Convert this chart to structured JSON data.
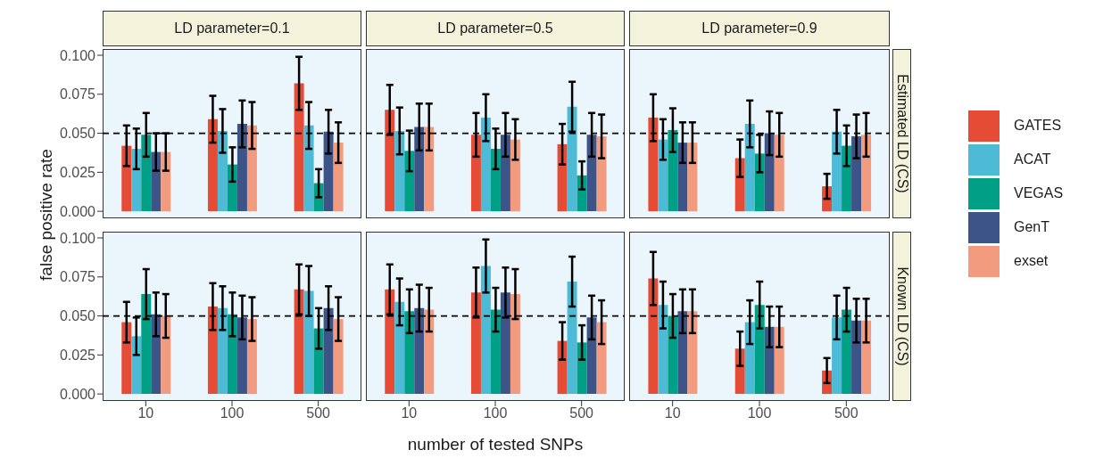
{
  "chart_data": [
    {
      "type": "bar",
      "title": "LD parameter=0.1",
      "ylabel": "false positive rate",
      "categories": [
        "10",
        "100",
        "500"
      ],
      "tick_labels": "y",
      "ylim": [
        -0.0045,
        0.104
      ],
      "yticks": [
        {
          "value": 0,
          "label": "0.000"
        },
        {
          "value": 0.025,
          "label": "0.025"
        },
        {
          "value": 0.05,
          "label": "0.050"
        },
        {
          "value": 0.075,
          "label": "0.075"
        },
        {
          "value": 0.1,
          "label": "0.100"
        }
      ],
      "ref_lines": [
        {
          "axis": "y",
          "value": 0.05,
          "line_style": "dashed",
          "color": "#000000"
        }
      ],
      "series": [
        {
          "color": "#e64b35",
          "values": [
            0.042,
            0.059,
            0.082
          ],
          "errors": [
            0.013,
            0.015,
            0.017
          ]
        },
        {
          "color": "#4dbbd5",
          "values": [
            0.04,
            0.0515,
            0.055
          ],
          "errors": [
            0.013,
            0.014,
            0.015
          ]
        },
        {
          "color": "#00a087",
          "values": [
            0.049,
            0.03,
            0.018
          ],
          "errors": [
            0.014,
            0.011,
            0.009
          ]
        },
        {
          "color": "#3c5488",
          "values": [
            0.038,
            0.056,
            0.051
          ],
          "errors": [
            0.012,
            0.015,
            0.014
          ]
        },
        {
          "color": "#f39b7f",
          "values": [
            0.038,
            0.055,
            0.044
          ],
          "errors": [
            0.012,
            0.015,
            0.013
          ]
        }
      ]
    },
    {
      "type": "bar",
      "title": "LD parameter=0.5",
      "categories": [
        "10",
        "100",
        "500"
      ],
      "tick_labels": false,
      "ylim": [
        -0.0045,
        0.104
      ],
      "ref_lines": [
        {
          "axis": "y",
          "value": 0.05,
          "line_style": "dashed",
          "color": "#000000"
        }
      ],
      "series": [
        {
          "color": "#e64b35",
          "values": [
            0.065,
            0.049,
            0.043
          ],
          "errors": [
            0.016,
            0.014,
            0.013
          ]
        },
        {
          "color": "#4dbbd5",
          "values": [
            0.0515,
            0.06,
            0.067
          ],
          "errors": [
            0.015,
            0.015,
            0.016
          ]
        },
        {
          "color": "#00a087",
          "values": [
            0.0387,
            0.04,
            0.023
          ],
          "errors": [
            0.013,
            0.013,
            0.009
          ]
        },
        {
          "color": "#3c5488",
          "values": [
            0.054,
            0.049,
            0.049
          ],
          "errors": [
            0.015,
            0.014,
            0.014
          ]
        },
        {
          "color": "#f39b7f",
          "values": [
            0.054,
            0.046,
            0.048
          ],
          "errors": [
            0.015,
            0.013,
            0.014
          ]
        }
      ]
    },
    {
      "type": "bar",
      "title": "LD parameter=0.9",
      "y2label": "Estimated LD (CS)",
      "categories": [
        "10",
        "100",
        "500"
      ],
      "tick_labels": false,
      "legend": "right",
      "ylim": [
        -0.0045,
        0.104
      ],
      "ref_lines": [
        {
          "axis": "y",
          "value": 0.05,
          "line_style": "dashed",
          "color": "#000000"
        }
      ],
      "series": [
        {
          "name": "GATES",
          "color": "#e64b35",
          "values": [
            0.06,
            0.034,
            0.016
          ],
          "errors": [
            0.015,
            0.012,
            0.008
          ]
        },
        {
          "name": "ACAT",
          "color": "#4dbbd5",
          "values": [
            0.046,
            0.056,
            0.051
          ],
          "errors": [
            0.013,
            0.015,
            0.014
          ]
        },
        {
          "name": "VEGAS",
          "color": "#00a087",
          "values": [
            0.052,
            0.037,
            0.042
          ],
          "errors": [
            0.014,
            0.012,
            0.013
          ]
        },
        {
          "name": "GenT",
          "color": "#3c5488",
          "values": [
            0.044,
            0.05,
            0.048
          ],
          "errors": [
            0.013,
            0.014,
            0.014
          ]
        },
        {
          "name": "exset",
          "color": "#f39b7f",
          "values": [
            0.044,
            0.049,
            0.049
          ],
          "errors": [
            0.013,
            0.014,
            0.014
          ]
        }
      ]
    },
    {
      "type": "bar",
      "categories": [
        "10",
        "100",
        "500"
      ],
      "ylim": [
        -0.0045,
        0.104
      ],
      "yticks": [
        {
          "value": 0,
          "label": "0.000"
        },
        {
          "value": 0.025,
          "label": "0.025"
        },
        {
          "value": 0.05,
          "label": "0.050"
        },
        {
          "value": 0.075,
          "label": "0.075"
        },
        {
          "value": 0.1,
          "label": "0.100"
        }
      ],
      "ref_lines": [
        {
          "axis": "y",
          "value": 0.05,
          "line_style": "dashed",
          "color": "#000000"
        }
      ],
      "series": [
        {
          "color": "#e64b35",
          "values": [
            0.046,
            0.056,
            0.067
          ],
          "errors": [
            0.013,
            0.015,
            0.016
          ]
        },
        {
          "color": "#4dbbd5",
          "values": [
            0.037,
            0.055,
            0.066
          ],
          "errors": [
            0.012,
            0.014,
            0.016
          ]
        },
        {
          "color": "#00a087",
          "values": [
            0.064,
            0.051,
            0.042
          ],
          "errors": [
            0.016,
            0.014,
            0.013
          ]
        },
        {
          "color": "#3c5488",
          "values": [
            0.051,
            0.049,
            0.055
          ],
          "errors": [
            0.014,
            0.014,
            0.014
          ]
        },
        {
          "color": "#f39b7f",
          "values": [
            0.05,
            0.048,
            0.048
          ],
          "errors": [
            0.014,
            0.014,
            0.014
          ]
        }
      ]
    },
    {
      "type": "bar",
      "xlabel": "number of tested SNPs",
      "categories": [
        "10",
        "100",
        "500"
      ],
      "tick_labels": "x",
      "ylim": [
        -0.0045,
        0.104
      ],
      "ref_lines": [
        {
          "axis": "y",
          "value": 0.05,
          "line_style": "dashed",
          "color": "#000000"
        }
      ],
      "series": [
        {
          "color": "#e64b35",
          "values": [
            0.067,
            0.065,
            0.034
          ],
          "errors": [
            0.016,
            0.016,
            0.012
          ]
        },
        {
          "color": "#4dbbd5",
          "values": [
            0.059,
            0.082,
            0.072
          ],
          "errors": [
            0.015,
            0.017,
            0.016
          ]
        },
        {
          "color": "#00a087",
          "values": [
            0.053,
            0.054,
            0.033
          ],
          "errors": [
            0.014,
            0.014,
            0.011
          ]
        },
        {
          "color": "#3c5488",
          "values": [
            0.055,
            0.065,
            0.049
          ],
          "errors": [
            0.015,
            0.016,
            0.014
          ]
        },
        {
          "color": "#f39b7f",
          "values": [
            0.054,
            0.064,
            0.046
          ],
          "errors": [
            0.014,
            0.016,
            0.014
          ]
        }
      ]
    },
    {
      "type": "bar",
      "y2label": "Known LD (CS)",
      "categories": [
        "10",
        "100",
        "500"
      ],
      "tick_labels": "x",
      "ylim": [
        -0.0045,
        0.104
      ],
      "ref_lines": [
        {
          "axis": "y",
          "value": 0.05,
          "line_style": "dashed",
          "color": "#000000"
        }
      ],
      "series": [
        {
          "color": "#e64b35",
          "values": [
            0.074,
            0.029,
            0.015
          ],
          "errors": [
            0.017,
            0.011,
            0.008
          ]
        },
        {
          "color": "#4dbbd5",
          "values": [
            0.057,
            0.046,
            0.049
          ],
          "errors": [
            0.015,
            0.014,
            0.014
          ]
        },
        {
          "color": "#00a087",
          "values": [
            0.05,
            0.057,
            0.054
          ],
          "errors": [
            0.014,
            0.015,
            0.014
          ]
        },
        {
          "color": "#3c5488",
          "values": [
            0.053,
            0.043,
            0.047
          ],
          "errors": [
            0.014,
            0.013,
            0.014
          ]
        },
        {
          "color": "#f39b7f",
          "values": [
            0.053,
            0.043,
            0.047
          ],
          "errors": [
            0.014,
            0.013,
            0.014
          ]
        }
      ]
    }
  ]
}
